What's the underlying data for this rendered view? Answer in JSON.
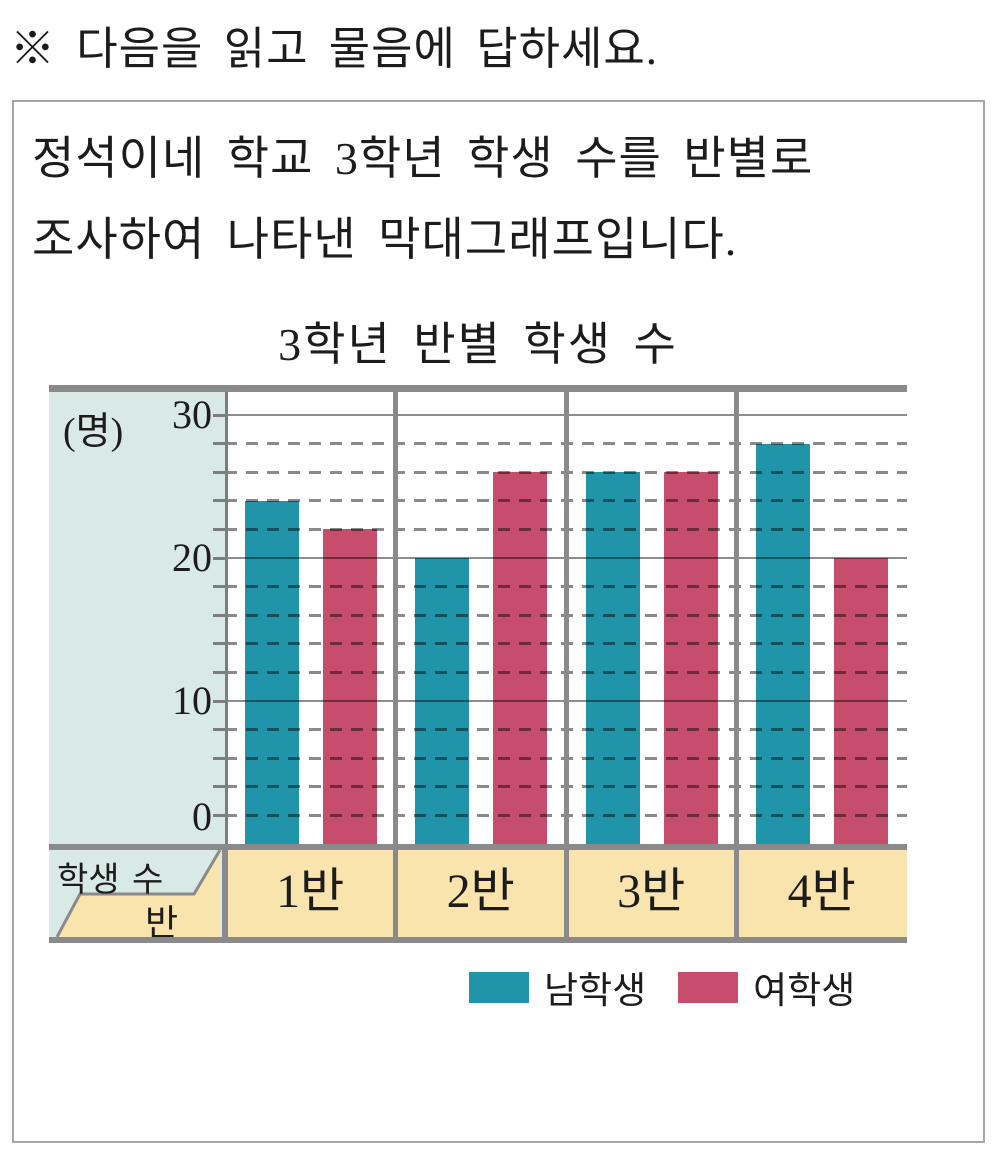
{
  "page": {
    "instruction": "※ 다음을 읽고 물음에 답하세요."
  },
  "problem": {
    "line1": "정석이네 학교 3학년 학생 수를 반별로",
    "line2": "조사하여 나타낸 막대그래프입니다."
  },
  "chart_data": {
    "type": "bar",
    "title": "3학년 반별 학생 수",
    "y_axis_unit": "(명)",
    "corner_row_label": "학생 수",
    "corner_col_label": "반",
    "categories": [
      "1반",
      "2반",
      "3반",
      "4반"
    ],
    "series": [
      {
        "name": "남학생",
        "color": "#2095aa",
        "values": [
          24,
          20,
          26,
          28
        ]
      },
      {
        "name": "여학생",
        "color": "#c64e6c",
        "values": [
          22,
          26,
          26,
          20
        ]
      }
    ],
    "y_ticks": [
      0,
      10,
      20,
      30
    ],
    "ylim": [
      0,
      31.6
    ],
    "grid": {
      "solid_interval": 10,
      "dashed_interval": 2,
      "dashed_style": "dark-dashes-over-bars"
    },
    "legend_position": "bottom",
    "colors": {
      "male_bar": "#2095aa",
      "female_bar": "#c64e6c",
      "y_panel_bg": "#d9eae6",
      "header_bg": "#f8e4ac",
      "frame": "#8a8a8a"
    }
  }
}
